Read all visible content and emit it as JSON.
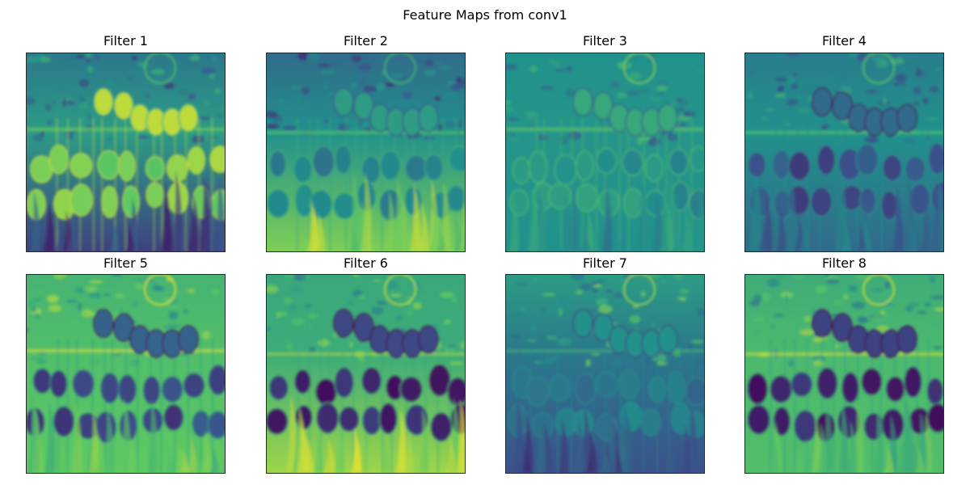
{
  "figure": {
    "title": "Feature Maps from conv1",
    "panels": [
      {
        "title": "Filter 1"
      },
      {
        "title": "Filter 2"
      },
      {
        "title": "Filter 3"
      },
      {
        "title": "Filter 4"
      },
      {
        "title": "Filter 5"
      },
      {
        "title": "Filter 6"
      },
      {
        "title": "Filter 7"
      },
      {
        "title": "Filter 8"
      }
    ]
  },
  "colormap": {
    "name": "viridis",
    "stops": [
      "#440154",
      "#3b528b",
      "#21918c",
      "#5ec962",
      "#fde725"
    ]
  }
}
